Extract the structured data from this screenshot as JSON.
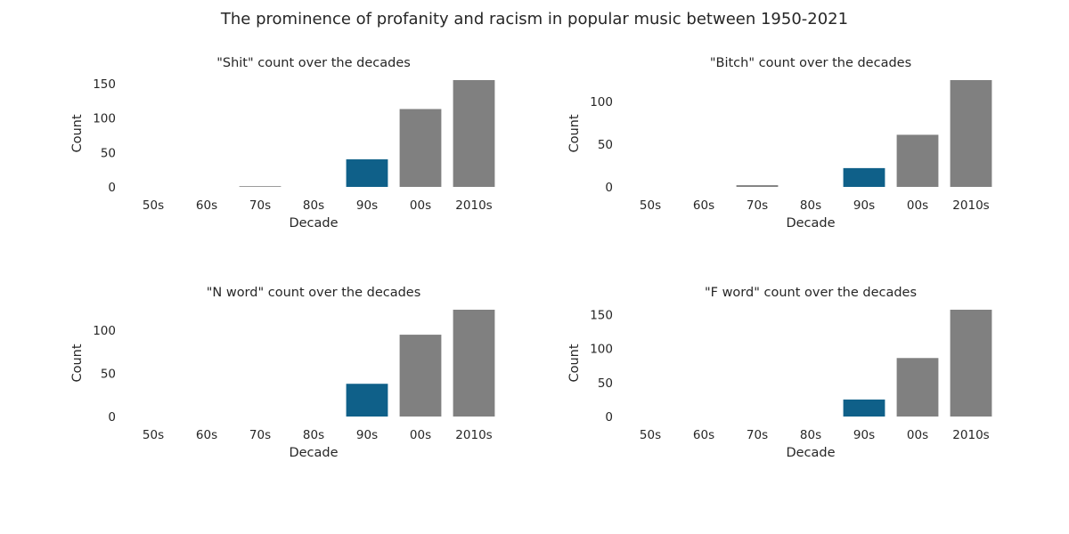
{
  "figure": {
    "title": "The prominence of profanity and racism in popular music between 1950-2021"
  },
  "colors": {
    "highlight": "#0f6089",
    "future": "#808080",
    "early": "#808080",
    "background": "#ffffff",
    "text": "#262626"
  },
  "chart_data": [
    {
      "type": "bar",
      "title": "\"Shit\" count over the decades",
      "xlabel": "Decade",
      "ylabel": "Count",
      "categories": [
        "50s",
        "60s",
        "70s",
        "80s",
        "90s",
        "00s",
        "2010s"
      ],
      "values": [
        0,
        0,
        1,
        0,
        40,
        113,
        155
      ],
      "ylim": [
        0,
        155
      ],
      "yticks": [
        0,
        50,
        100,
        150
      ],
      "highlight_category": "90s",
      "grid": false
    },
    {
      "type": "bar",
      "title": "\"Bitch\" count over the decades",
      "xlabel": "Decade",
      "ylabel": "Count",
      "categories": [
        "50s",
        "60s",
        "70s",
        "80s",
        "90s",
        "00s",
        "2010s"
      ],
      "values": [
        0,
        0,
        2,
        0,
        22,
        61,
        125
      ],
      "ylim": [
        0,
        125
      ],
      "yticks": [
        0,
        50,
        100
      ],
      "highlight_category": "90s",
      "grid": false
    },
    {
      "type": "bar",
      "title": "\"N word\" count over the decades",
      "xlabel": "Decade",
      "ylabel": "Count",
      "categories": [
        "50s",
        "60s",
        "70s",
        "80s",
        "90s",
        "00s",
        "2010s"
      ],
      "values": [
        0,
        0,
        0,
        0,
        38,
        95,
        124
      ],
      "ylim": [
        0,
        124
      ],
      "yticks": [
        0,
        50,
        100
      ],
      "highlight_category": "90s",
      "grid": false
    },
    {
      "type": "bar",
      "title": "\"F word\" count over the decades",
      "xlabel": "Decade",
      "ylabel": "Count",
      "categories": [
        "50s",
        "60s",
        "70s",
        "80s",
        "90s",
        "00s",
        "2010s"
      ],
      "values": [
        0,
        0,
        0,
        0,
        25,
        86,
        157
      ],
      "ylim": [
        0,
        157
      ],
      "yticks": [
        0,
        50,
        100,
        150
      ],
      "highlight_category": "90s",
      "grid": false
    }
  ]
}
